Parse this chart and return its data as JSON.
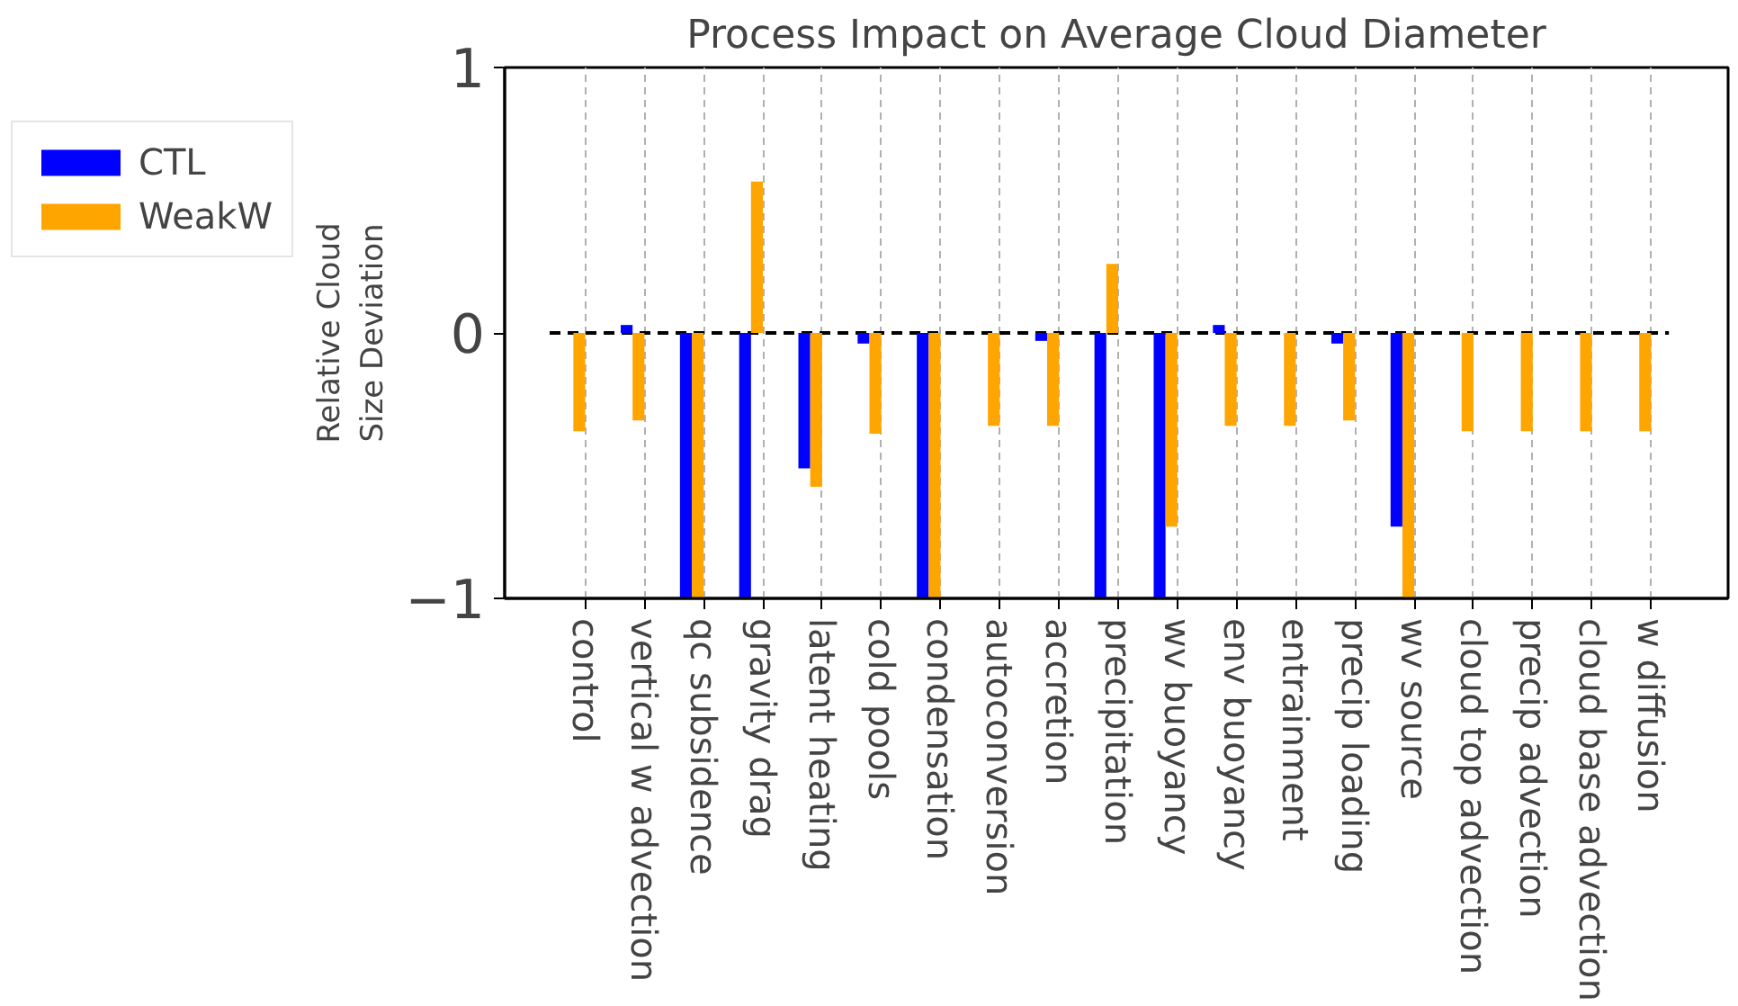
{
  "chart_data": {
    "type": "bar",
    "title": "Process Impact on Average Cloud Diameter",
    "ylabel": "Relative Cloud\nSize Deviation",
    "categories": [
      "control",
      "vertical w advection",
      "qc subsidence",
      "gravity drag",
      "latent heating",
      "cold pools",
      "condensation",
      "autoconversion",
      "accretion",
      "precipitation",
      "wv buoyancy",
      "env buoyancy",
      "entrainment",
      "precip loading",
      "wv source",
      "cloud top advection",
      "precip advection",
      "cloud base advection",
      "w diffusion"
    ],
    "series": [
      {
        "name": "CTL",
        "color": "#0000ff",
        "values": [
          0,
          0.03,
          -1,
          -1,
          -0.51,
          -0.04,
          -1,
          0,
          -0.03,
          -1,
          -1,
          0.03,
          0,
          -0.04,
          -0.73,
          0,
          0,
          0,
          0
        ]
      },
      {
        "name": "WeakW",
        "color": "#ffa500",
        "values": [
          -0.37,
          -0.33,
          -1,
          0.57,
          -0.58,
          -0.38,
          -1,
          -0.35,
          -0.35,
          0.26,
          -0.73,
          -0.35,
          -0.35,
          -0.33,
          -1,
          -0.37,
          -0.37,
          -0.37,
          -0.37
        ]
      }
    ],
    "ylim": [
      -1,
      1
    ],
    "yticks": [
      {
        "value": -1,
        "label": "−1"
      },
      0,
      1
    ],
    "ref_lines": [
      {
        "axis": "y",
        "value": 0,
        "color": "#000000",
        "line_style": "dashed"
      }
    ],
    "grid": "x",
    "legend": "left"
  }
}
